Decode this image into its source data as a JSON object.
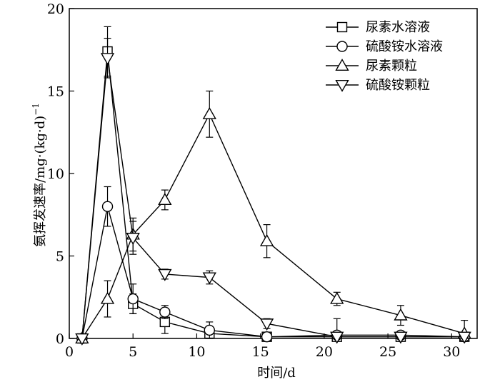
{
  "chart_data": {
    "type": "line",
    "title": "",
    "xlabel": "时间/d",
    "ylabel": "氨挥发速率/mg·(kg·d)",
    "ylabel_sup": "−1",
    "xlim": [
      0,
      32
    ],
    "ylim": [
      0,
      20
    ],
    "xticks": [
      0,
      5,
      10,
      15,
      20,
      25,
      30
    ],
    "yticks": [
      0,
      5,
      10,
      15,
      20
    ],
    "x": [
      1,
      3,
      5,
      7.5,
      11,
      15.5,
      21,
      26,
      31
    ],
    "legend_position": "top-right",
    "grid": false,
    "series": [
      {
        "name": "尿素水溶液",
        "marker": "square",
        "values": [
          0,
          17.4,
          2.1,
          1.0,
          0.3,
          0.1,
          0.1,
          0.1,
          0.1
        ],
        "errors": [
          0,
          1.5,
          0.6,
          0.7,
          0.3,
          0.2,
          0.2,
          0.2,
          0.2
        ]
      },
      {
        "name": "硫酸铵水溶液",
        "marker": "circle",
        "values": [
          0,
          8.0,
          2.4,
          1.6,
          0.5,
          0.1,
          0.2,
          0.2,
          0.1
        ],
        "errors": [
          0,
          1.2,
          0.9,
          0.4,
          0.5,
          0.2,
          1.0,
          0.2,
          0.2
        ]
      },
      {
        "name": "尿素颗粒",
        "marker": "triangle-up",
        "values": [
          0,
          2.4,
          6.3,
          8.4,
          13.6,
          5.9,
          2.4,
          1.4,
          0.3
        ],
        "errors": [
          0,
          1.1,
          1.0,
          0.6,
          1.4,
          1.0,
          0.4,
          0.6,
          0.8
        ]
      },
      {
        "name": "硫酸铵颗粒",
        "marker": "triangle-down",
        "values": [
          0,
          17.0,
          6.1,
          3.9,
          3.7,
          0.9,
          0.1,
          0.1,
          0.1
        ],
        "errors": [
          0,
          1.2,
          1.0,
          0.3,
          0.4,
          0.3,
          0.2,
          0.2,
          0.2
        ]
      }
    ]
  }
}
